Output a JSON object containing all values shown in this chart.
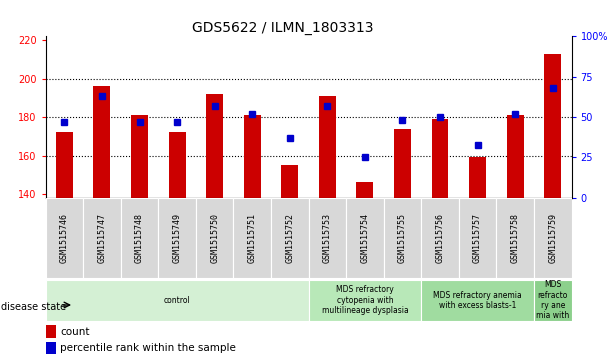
{
  "title": "GDS5622 / ILMN_1803313",
  "samples": [
    "GSM1515746",
    "GSM1515747",
    "GSM1515748",
    "GSM1515749",
    "GSM1515750",
    "GSM1515751",
    "GSM1515752",
    "GSM1515753",
    "GSM1515754",
    "GSM1515755",
    "GSM1515756",
    "GSM1515757",
    "GSM1515758",
    "GSM1515759"
  ],
  "count_values": [
    172,
    196,
    181,
    172,
    192,
    181,
    155,
    191,
    146,
    174,
    179,
    159,
    181,
    213
  ],
  "percentile_values": [
    47,
    63,
    47,
    47,
    57,
    52,
    37,
    57,
    25,
    48,
    50,
    33,
    52,
    68
  ],
  "ylim_left": [
    138,
    222
  ],
  "ylim_right": [
    0,
    100
  ],
  "yticks_left": [
    140,
    160,
    180,
    200,
    220
  ],
  "yticks_right": [
    0,
    25,
    50,
    75,
    100
  ],
  "yticklabels_right": [
    "0",
    "25",
    "50",
    "75",
    "100%"
  ],
  "bar_color": "#cc0000",
  "dot_color": "#0000cc",
  "bar_bottom": 138,
  "disease_groups": [
    {
      "label": "control",
      "start": 0,
      "end": 7,
      "color": "#d4f0d4"
    },
    {
      "label": "MDS refractory\ncytopenia with\nmultilineage dysplasia",
      "start": 7,
      "end": 10,
      "color": "#b8e8b8"
    },
    {
      "label": "MDS refractory anemia\nwith excess blasts-1",
      "start": 10,
      "end": 13,
      "color": "#a0dca0"
    },
    {
      "label": "MDS\nrefracto\nry ane\nmia with",
      "start": 13,
      "end": 14,
      "color": "#8cd08c"
    }
  ],
  "disease_state_label": "disease state",
  "legend_count_label": "count",
  "legend_percentile_label": "percentile rank within the sample",
  "tick_label_fontsize": 6.5,
  "title_fontsize": 10,
  "dot_marker_size": 4
}
